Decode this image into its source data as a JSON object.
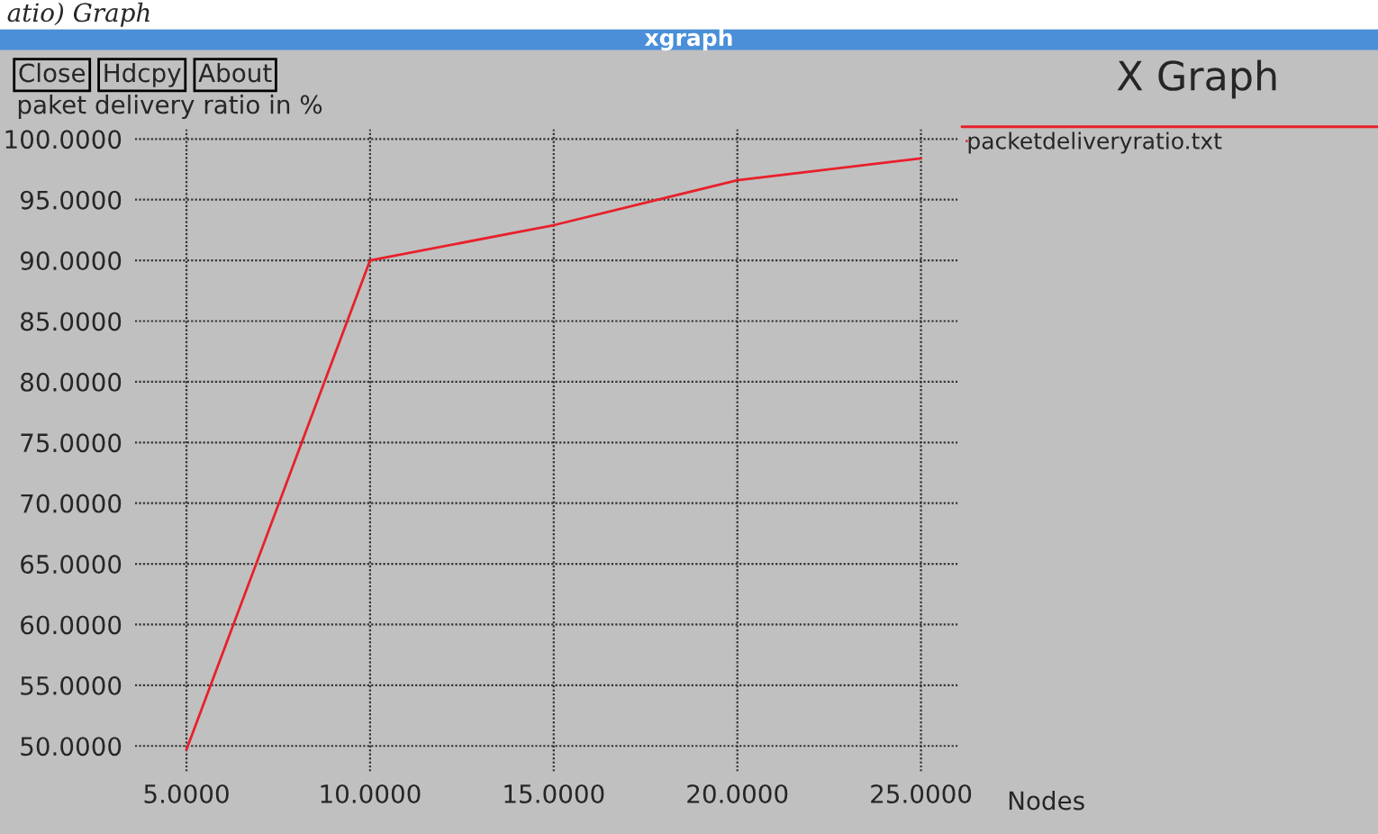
{
  "chart_data": {
    "type": "line",
    "title": "X Graph",
    "ylabel": "paket delivery ratio in %",
    "xlabel": "Nodes",
    "annotations": [
      "atio) Graph",
      "xgraph",
      "Close",
      "Hdcpy",
      "About"
    ],
    "x": [
      5,
      10,
      15,
      20,
      25
    ],
    "series": [
      {
        "name": "packetdeliveryratio.txt",
        "color": "#e8202a",
        "values": [
          49.7,
          90.0,
          92.9,
          96.6,
          98.4
        ]
      }
    ],
    "xlim": [
      3.6,
      26.0
    ],
    "ylim": [
      47.9,
      100.8
    ],
    "xticks": [
      {
        "value": 5,
        "label": "5.0000"
      },
      {
        "value": 10,
        "label": "10.0000"
      },
      {
        "value": 15,
        "label": "15.0000"
      },
      {
        "value": 20,
        "label": "20.0000"
      },
      {
        "value": 25,
        "label": "25.0000"
      }
    ],
    "yticks": [
      {
        "value": 50,
        "label": "50.0000"
      },
      {
        "value": 55,
        "label": "55.0000"
      },
      {
        "value": 60,
        "label": "60.0000"
      },
      {
        "value": 65,
        "label": "65.0000"
      },
      {
        "value": 70,
        "label": "70.0000"
      },
      {
        "value": 75,
        "label": "75.0000"
      },
      {
        "value": 80,
        "label": "80.0000"
      },
      {
        "value": 85,
        "label": "85.0000"
      },
      {
        "value": 90,
        "label": "90.0000"
      },
      {
        "value": 95,
        "label": "95.0000"
      },
      {
        "value": 100,
        "label": "100.0000"
      }
    ],
    "grid": true,
    "legend": "top right",
    "marker": "none",
    "line_style": "solid"
  }
}
